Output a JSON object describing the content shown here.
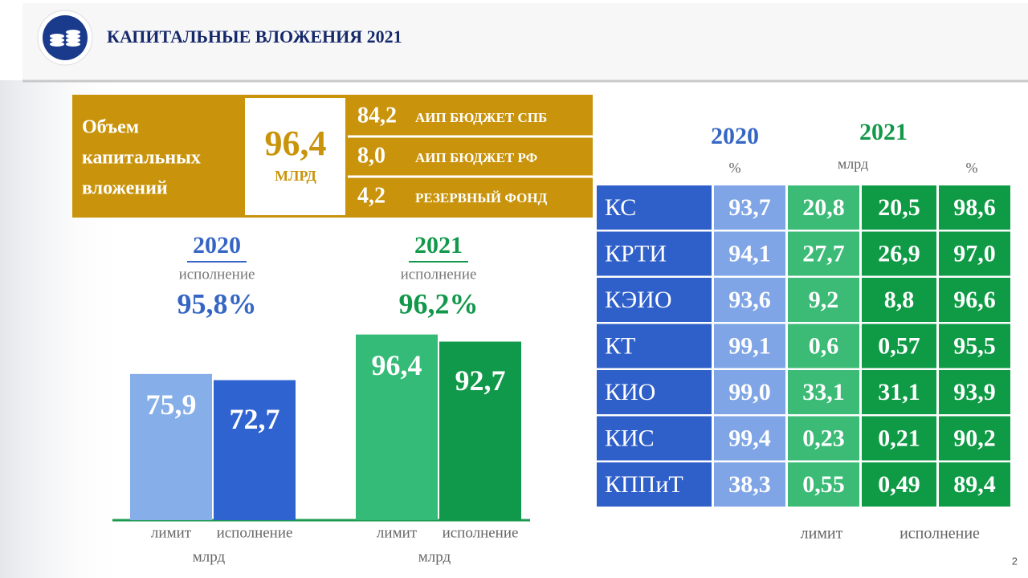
{
  "header": {
    "title": "КАПИТАЛЬНЫЕ ВЛОЖЕНИЯ 2021"
  },
  "summary": {
    "label_lines": [
      "Объем",
      "капитальных",
      "вложений"
    ],
    "total": "96,4",
    "unit": "МЛРД",
    "items": [
      {
        "value": "84,2",
        "label": "АИП БЮДЖЕТ СПБ"
      },
      {
        "value": "8,0",
        "label": "АИП БЮДЖЕТ РФ"
      },
      {
        "value": "4,2",
        "label": "РЕЗЕРВНЫЙ ФОНД"
      }
    ]
  },
  "bar_charts": [
    {
      "type": "bar",
      "year": "2020",
      "caption": "исполнение",
      "rate": "95,8%",
      "categories": [
        "лимит",
        "исполнение"
      ],
      "values": [
        75.9,
        72.7
      ],
      "value_labels": [
        "75,9",
        "72,7"
      ],
      "unit": "млрд",
      "colors": [
        "#86aee8",
        "#2f63d0"
      ],
      "year_color": "#3566c4"
    },
    {
      "type": "bar",
      "year": "2021",
      "caption": "исполнение",
      "rate": "96,2%",
      "categories": [
        "лимит",
        "исполнение"
      ],
      "values": [
        96.4,
        92.7
      ],
      "value_labels": [
        "96,4",
        "92,7"
      ],
      "unit": "млрд",
      "colors": [
        "#35bb78",
        "#10994a"
      ],
      "year_color": "#12984a"
    }
  ],
  "table": {
    "year_2020": "2020",
    "year_2021": "2021",
    "unit_2020": "%",
    "unit_2021_amount": "млрд",
    "unit_2021_pct": "%",
    "rows": [
      [
        "КС",
        "93,7",
        "20,8",
        "20,5",
        "98,6"
      ],
      [
        "КРТИ",
        "94,1",
        "27,7",
        "26,9",
        "97,0"
      ],
      [
        "КЭИО",
        "93,6",
        "9,2",
        "8,8",
        "96,6"
      ],
      [
        "КТ",
        "99,1",
        "0,6",
        "0,57",
        "95,5"
      ],
      [
        "КИО",
        "99,0",
        "33,1",
        "31,1",
        "93,9"
      ],
      [
        "КИС",
        "99,4",
        "0,23",
        "0,21",
        "90,2"
      ],
      [
        "КППиТ",
        "38,3",
        "0,55",
        "0,49",
        "89,4"
      ]
    ],
    "footer": [
      "лимит",
      "исполнение"
    ]
  },
  "page_number": "2"
}
